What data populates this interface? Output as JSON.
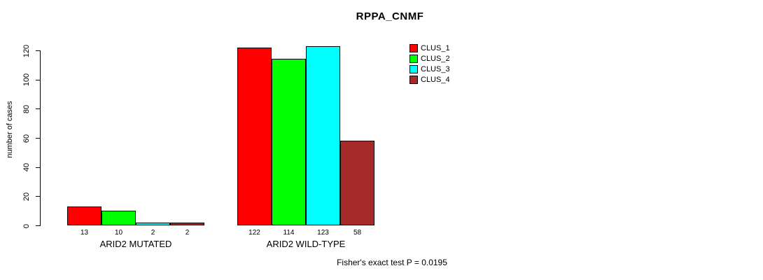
{
  "chart_data": {
    "type": "bar",
    "title": "RPPA_CNMF",
    "ylabel": "number of cases",
    "xlabel": "",
    "ylim": [
      0,
      120
    ],
    "yticks": [
      "0",
      "20",
      "40",
      "60",
      "80",
      "100",
      "120"
    ],
    "grid": false,
    "legend_position": "top-right",
    "categories": [
      "ARID2 MUTATED",
      "ARID2 WILD-TYPE"
    ],
    "series": [
      {
        "name": "CLUS_1",
        "color": "#ff0000",
        "values": [
          13,
          122
        ],
        "value_labels": [
          "13",
          "122"
        ]
      },
      {
        "name": "CLUS_2",
        "color": "#00ff00",
        "values": [
          10,
          114
        ],
        "value_labels": [
          "10",
          "114"
        ]
      },
      {
        "name": "CLUS_3",
        "color": "#00ffff",
        "values": [
          2,
          123
        ],
        "value_labels": [
          "2",
          "123"
        ]
      },
      {
        "name": "CLUS_4",
        "color": "#a52a2a",
        "values": [
          2,
          58
        ],
        "value_labels": [
          "2",
          "58"
        ]
      }
    ],
    "annotation": "Fisher's exact test P = 0.0195"
  },
  "colors": {
    "background": "#ffffff",
    "axis": "#000000",
    "text": "#000000"
  }
}
